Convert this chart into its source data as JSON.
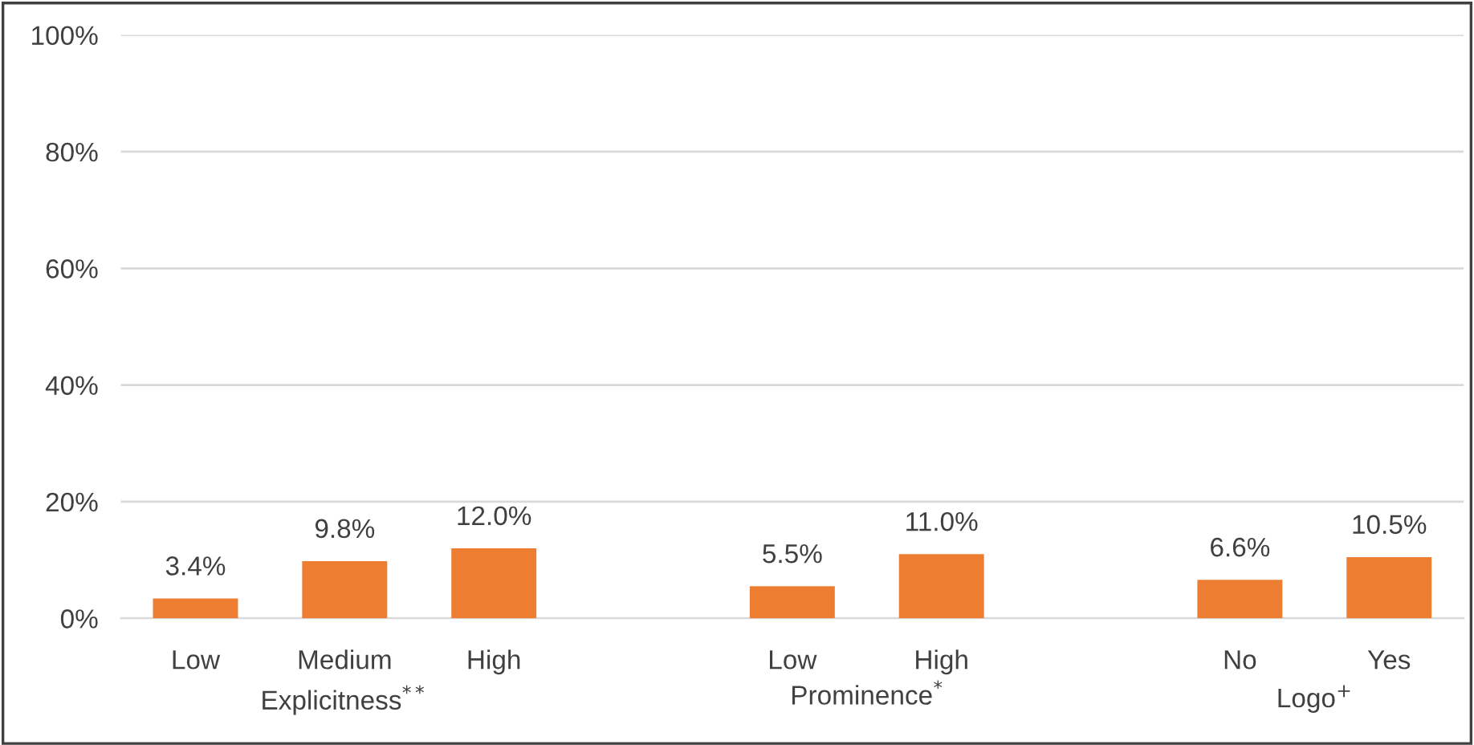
{
  "chart_data": {
    "type": "bar",
    "categories": [
      "Low",
      "Medium",
      "High",
      null,
      "Low",
      "High",
      null,
      "No",
      "Yes"
    ],
    "values": [
      3.4,
      9.8,
      12.0,
      null,
      5.5,
      11.0,
      null,
      6.6,
      10.5
    ],
    "value_labels": [
      "3.4%",
      "9.8%",
      "12.0%",
      null,
      "5.5%",
      "11.0%",
      null,
      "6.6%",
      "10.5%"
    ],
    "color": "#ed7d31",
    "ylim": [
      0,
      100
    ],
    "yticks": [
      {
        "value": 0,
        "label": "0%"
      },
      {
        "value": 20,
        "label": "20%"
      },
      {
        "value": 40,
        "label": "40%"
      },
      {
        "value": 60,
        "label": "60%"
      },
      {
        "value": 80,
        "label": "80%"
      },
      {
        "value": 100,
        "label": "100%"
      }
    ],
    "grid": "y",
    "annotations": [
      "Explicitness$^{**}$",
      "Prominence$^{*}$",
      "Logo$^{+}$"
    ]
  }
}
